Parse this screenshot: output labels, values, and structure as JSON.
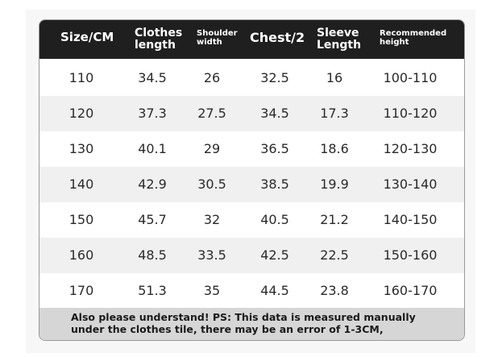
{
  "table": {
    "header": [
      "Size/CM",
      "Clothes length",
      "Shoulder width",
      "Chest/2",
      "Sleeve Length",
      "Recommended height"
    ],
    "rows": [
      [
        "110",
        "34.5",
        "26",
        "32.5",
        "16",
        "100-110"
      ],
      [
        "120",
        "37.3",
        "27.5",
        "34.5",
        "17.3",
        "110-120"
      ],
      [
        "130",
        "40.1",
        "29",
        "36.5",
        "18.6",
        "120-130"
      ],
      [
        "140",
        "42.9",
        "30.5",
        "38.5",
        "19.9",
        "130-140"
      ],
      [
        "150",
        "45.7",
        "32",
        "40.5",
        "21.2",
        "140-150"
      ],
      [
        "160",
        "48.5",
        "33.5",
        "42.5",
        "22.5",
        "150-160"
      ],
      [
        "170",
        "51.3",
        "35",
        "44.5",
        "23.8",
        "160-170"
      ]
    ]
  },
  "footer": {
    "lines": [
      "Also please understand! PS: This data is measured manually",
      "under the clothes tile, there may be an error of 1-3CM,"
    ]
  }
}
